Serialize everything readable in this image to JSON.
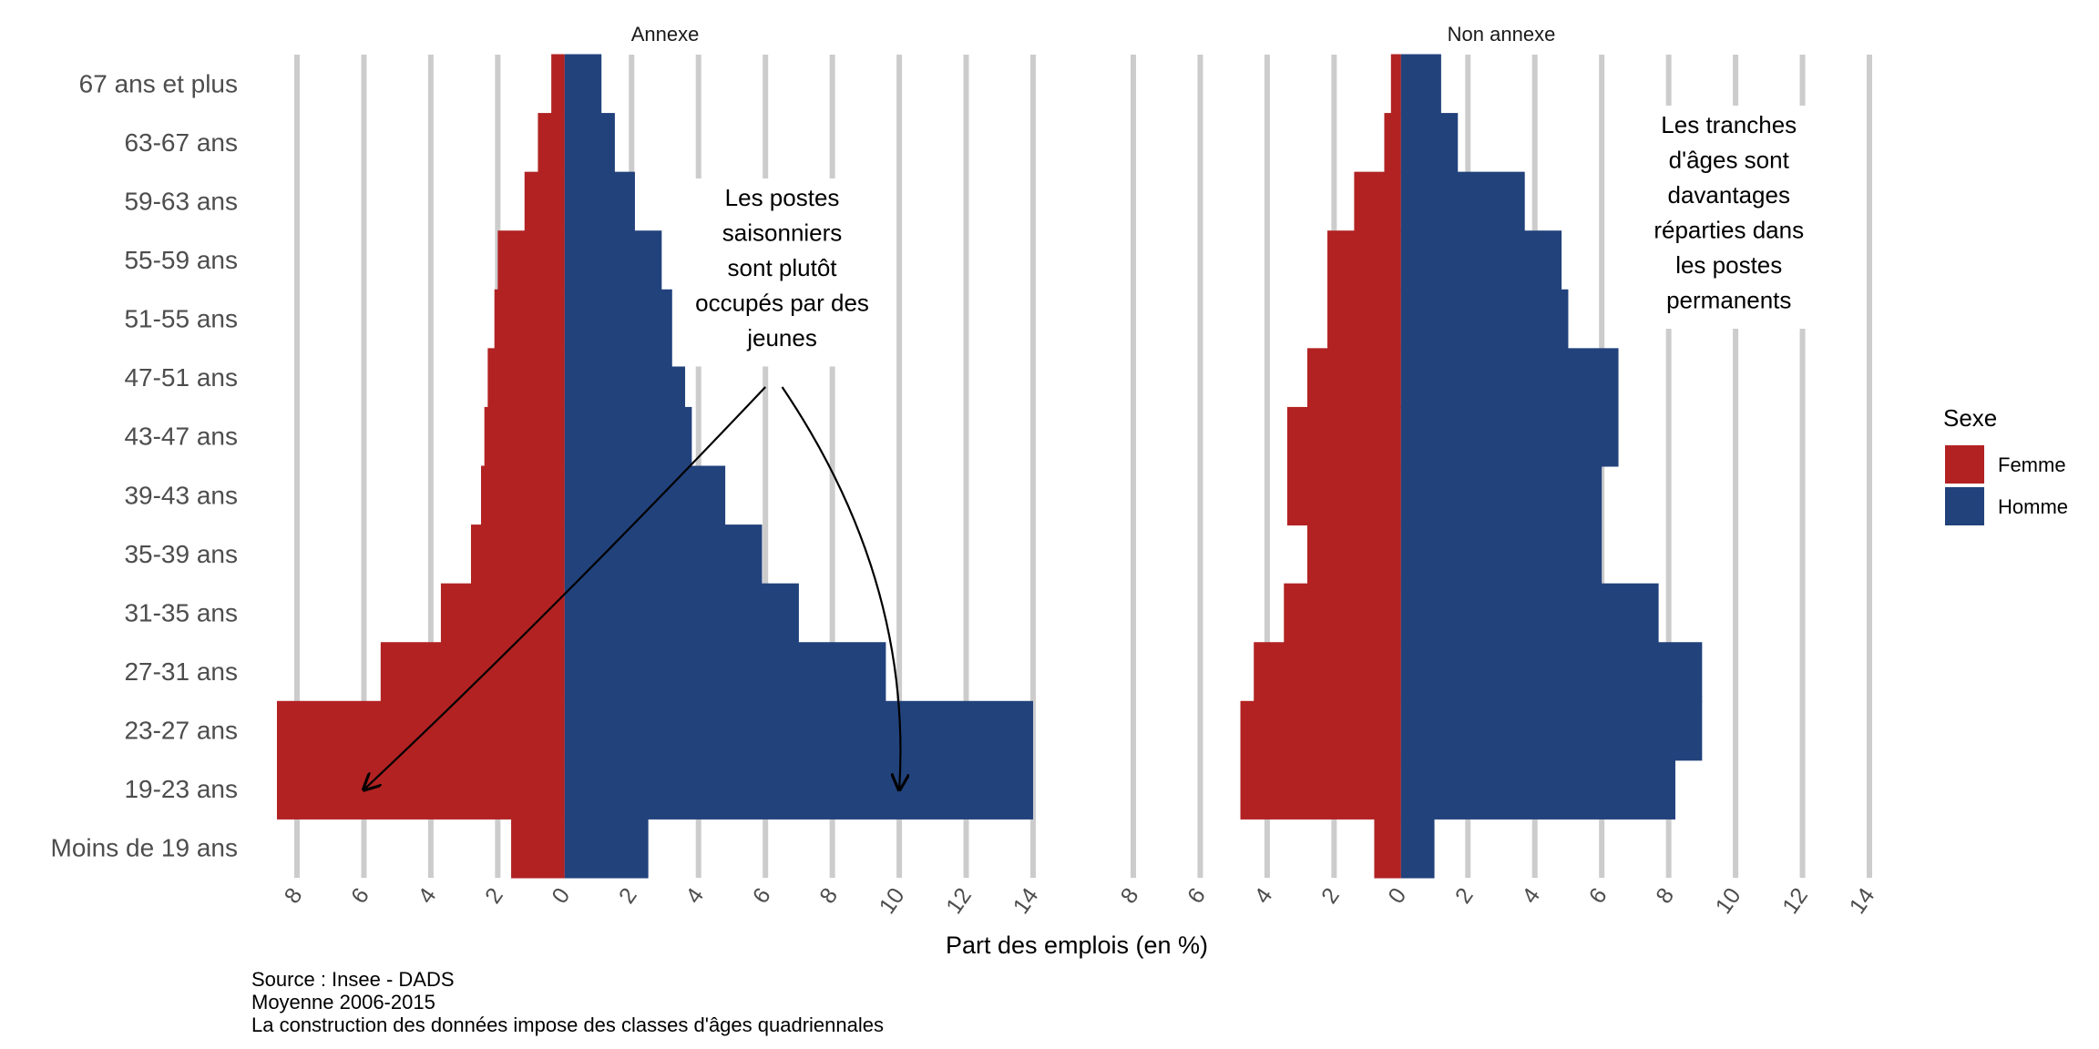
{
  "chart_data": {
    "type": "bar",
    "orientation": "horizontal",
    "style": "population-pyramid",
    "categories": [
      "Moins de 19 ans",
      "19-23 ans",
      "23-27 ans",
      "27-31 ans",
      "31-35 ans",
      "35-39 ans",
      "39-43 ans",
      "43-47 ans",
      "47-51 ans",
      "51-55 ans",
      "55-59 ans",
      "59-63 ans",
      "63-67 ans",
      "67 ans et plus"
    ],
    "xlabel": "Part des emplois (en %)",
    "xlim": [
      -8.3,
      14.3
    ],
    "xticks": [
      -8,
      -6,
      -4,
      -2,
      0,
      2,
      4,
      6,
      8,
      10,
      12,
      14
    ],
    "xtick_labels": [
      "8",
      "6",
      "4",
      "2",
      "0",
      "2",
      "4",
      "6",
      "8",
      "10",
      "12",
      "14"
    ],
    "grid": true,
    "legend": {
      "title": "Sexe",
      "position": "right",
      "entries": [
        {
          "label": "Femme",
          "color": "#b22222"
        },
        {
          "label": "Homme",
          "color": "#22427c"
        }
      ]
    },
    "panels": [
      {
        "title": "Annexe",
        "series": [
          {
            "name": "Femme",
            "color": "#b22222",
            "values": [
              1.6,
              8.6,
              8.6,
              5.5,
              3.7,
              2.8,
              2.5,
              2.4,
              2.3,
              2.1,
              2.0,
              1.2,
              0.8,
              0.4
            ]
          },
          {
            "name": "Homme",
            "color": "#22427c",
            "values": [
              2.5,
              14.0,
              14.0,
              9.6,
              7.0,
              5.9,
              4.8,
              3.8,
              3.6,
              3.6,
              2.9,
              2.1,
              1.5,
              1.1
            ]
          }
        ],
        "annotation": {
          "lines": [
            "Les postes",
            "saisonniers",
            "sont plutôt",
            "occupés par des",
            "jeunes"
          ],
          "arrows_to_category": "19-23 ans"
        }
      },
      {
        "title": "Non annexe",
        "series": [
          {
            "name": "Femme",
            "color": "#b22222",
            "values": [
              0.8,
              4.8,
              4.8,
              4.4,
              3.5,
              2.8,
              3.4,
              3.4,
              2.8,
              2.2,
              2.2,
              1.4,
              0.5,
              0.3
            ]
          },
          {
            "name": "Homme",
            "color": "#22427c",
            "values": [
              1.0,
              8.2,
              9.0,
              9.0,
              7.7,
              6.0,
              6.0,
              6.5,
              6.5,
              5.0,
              4.8,
              3.7,
              1.7,
              1.2
            ]
          }
        ],
        "annotation": {
          "lines": [
            "Les tranches",
            "d'âges sont",
            "davantages",
            "réparties dans",
            "les postes",
            "permanents"
          ]
        }
      }
    ],
    "caption": [
      "Source : Insee - DADS",
      "Moyenne 2006-2015",
      "La construction des données impose des classes d'âges quadriennales"
    ]
  }
}
